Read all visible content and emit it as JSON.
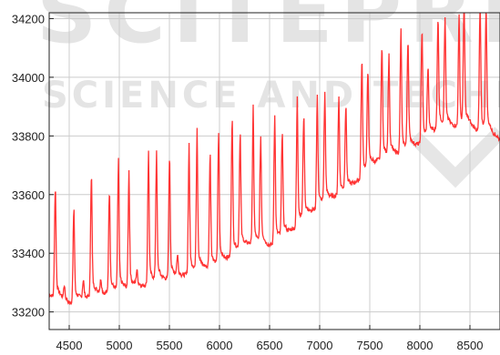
{
  "watermark": {
    "big": "SCITEPRESS",
    "line": "SCIENCE AND TECHNOLOGY"
  },
  "chart_data": {
    "type": "line",
    "title": "",
    "xlabel": "",
    "ylabel": "",
    "xlim": [
      4300,
      8800
    ],
    "ylim": [
      33140,
      34220
    ],
    "x_ticks": [
      4500,
      5000,
      5500,
      6000,
      6500,
      7000,
      7500,
      8000,
      8500
    ],
    "y_ticks": [
      33200,
      33400,
      33600,
      33800,
      34000,
      34200
    ],
    "grid": true,
    "legend": "none",
    "line_color": "#ff3333",
    "baseline": {
      "x": [
        4300,
        4500,
        4800,
        5000,
        5500,
        6000,
        6300,
        6500,
        6700,
        7000,
        7300,
        7600,
        7800,
        8000,
        8200,
        8500,
        8800
      ],
      "y": [
        33260,
        33230,
        33260,
        33270,
        33310,
        33360,
        33430,
        33420,
        33470,
        33560,
        33620,
        33720,
        33740,
        33770,
        33830,
        33830,
        33790
      ]
    },
    "peaks": {
      "x": [
        4360,
        4450,
        4545,
        4640,
        4720,
        4815,
        4900,
        4990,
        5095,
        5175,
        5290,
        5370,
        5500,
        5580,
        5695,
        5775,
        5905,
        5990,
        6125,
        6205,
        6335,
        6410,
        6550,
        6625,
        6775,
        6840,
        6975,
        7050,
        7190,
        7260,
        7420,
        7480,
        7620,
        7690,
        7810,
        7880,
        8020,
        8080,
        8180,
        8250,
        8390,
        8440,
        8600,
        8660
      ],
      "y": [
        33610,
        33280,
        33530,
        33300,
        33650,
        33300,
        33600,
        33670,
        33630,
        33330,
        33700,
        33690,
        33710,
        33380,
        33720,
        33760,
        33710,
        33760,
        33830,
        33770,
        33840,
        33750,
        33830,
        33780,
        33880,
        33840,
        33890,
        33900,
        33900,
        33880,
        34040,
        33990,
        34090,
        34030,
        34120,
        34100,
        34150,
        34010,
        34180,
        34160,
        34170,
        34220,
        34220,
        34200
      ]
    }
  }
}
